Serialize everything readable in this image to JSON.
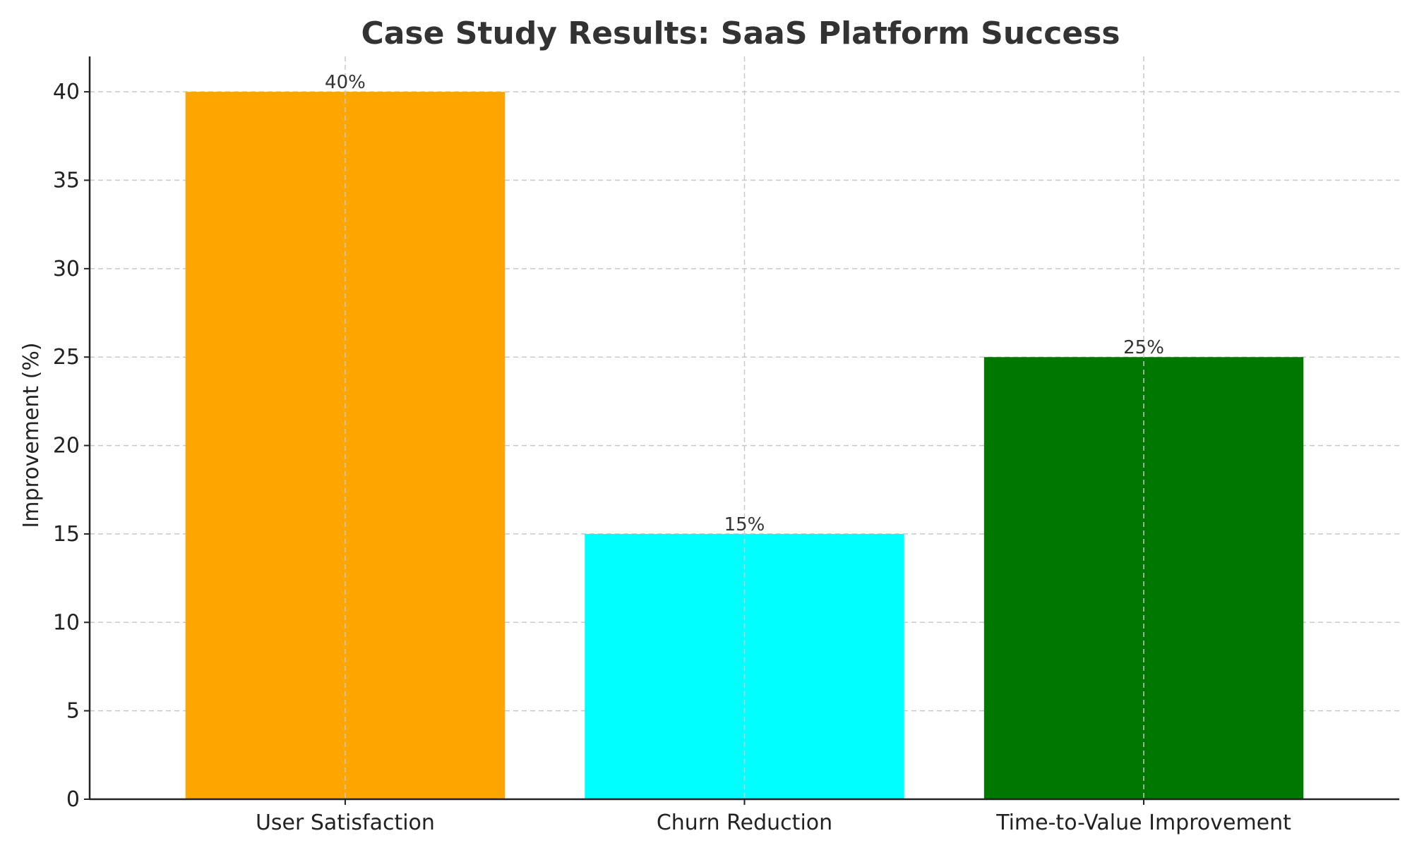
{
  "chart_data": {
    "type": "bar",
    "title": "Case Study Results: SaaS Platform Success",
    "xlabel": "",
    "ylabel": "Improvement (%)",
    "categories": [
      "User Satisfaction",
      "Churn Reduction",
      "Time-to-Value Improvement"
    ],
    "values": [
      40,
      15,
      25
    ],
    "data_labels": [
      "40%",
      "15%",
      "25%"
    ],
    "colors": [
      "#FFA500",
      "#00FFFF",
      "#007800"
    ],
    "ylim": [
      0,
      42
    ],
    "yticks": [
      0,
      5,
      10,
      15,
      20,
      25,
      30,
      35,
      40
    ],
    "grid": true
  }
}
